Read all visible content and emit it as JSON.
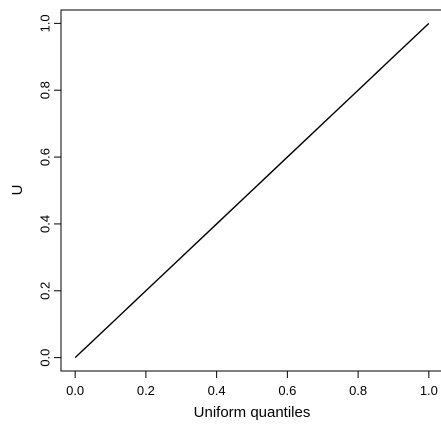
{
  "chart_data": {
    "type": "line",
    "title": "",
    "xlabel": "Uniform quantiles",
    "ylabel": "U",
    "xlim": [
      -0.04,
      1.04
    ],
    "ylim": [
      -0.04,
      1.04
    ],
    "x_ticks": [
      "0.0",
      "0.2",
      "0.4",
      "0.6",
      "0.8",
      "1.0"
    ],
    "y_ticks": [
      "0.0",
      "0.2",
      "0.4",
      "0.6",
      "0.8",
      "1.0"
    ],
    "grid": false,
    "legend": "none",
    "series": [
      {
        "x": [
          0.0,
          0.1,
          0.2,
          0.3,
          0.4,
          0.5,
          0.6,
          0.7,
          0.8,
          0.9,
          1.0
        ],
        "y": [
          0.0,
          0.1,
          0.2,
          0.3,
          0.4,
          0.5,
          0.6,
          0.7,
          0.8,
          0.9,
          1.0
        ],
        "color": "#000000"
      }
    ]
  }
}
